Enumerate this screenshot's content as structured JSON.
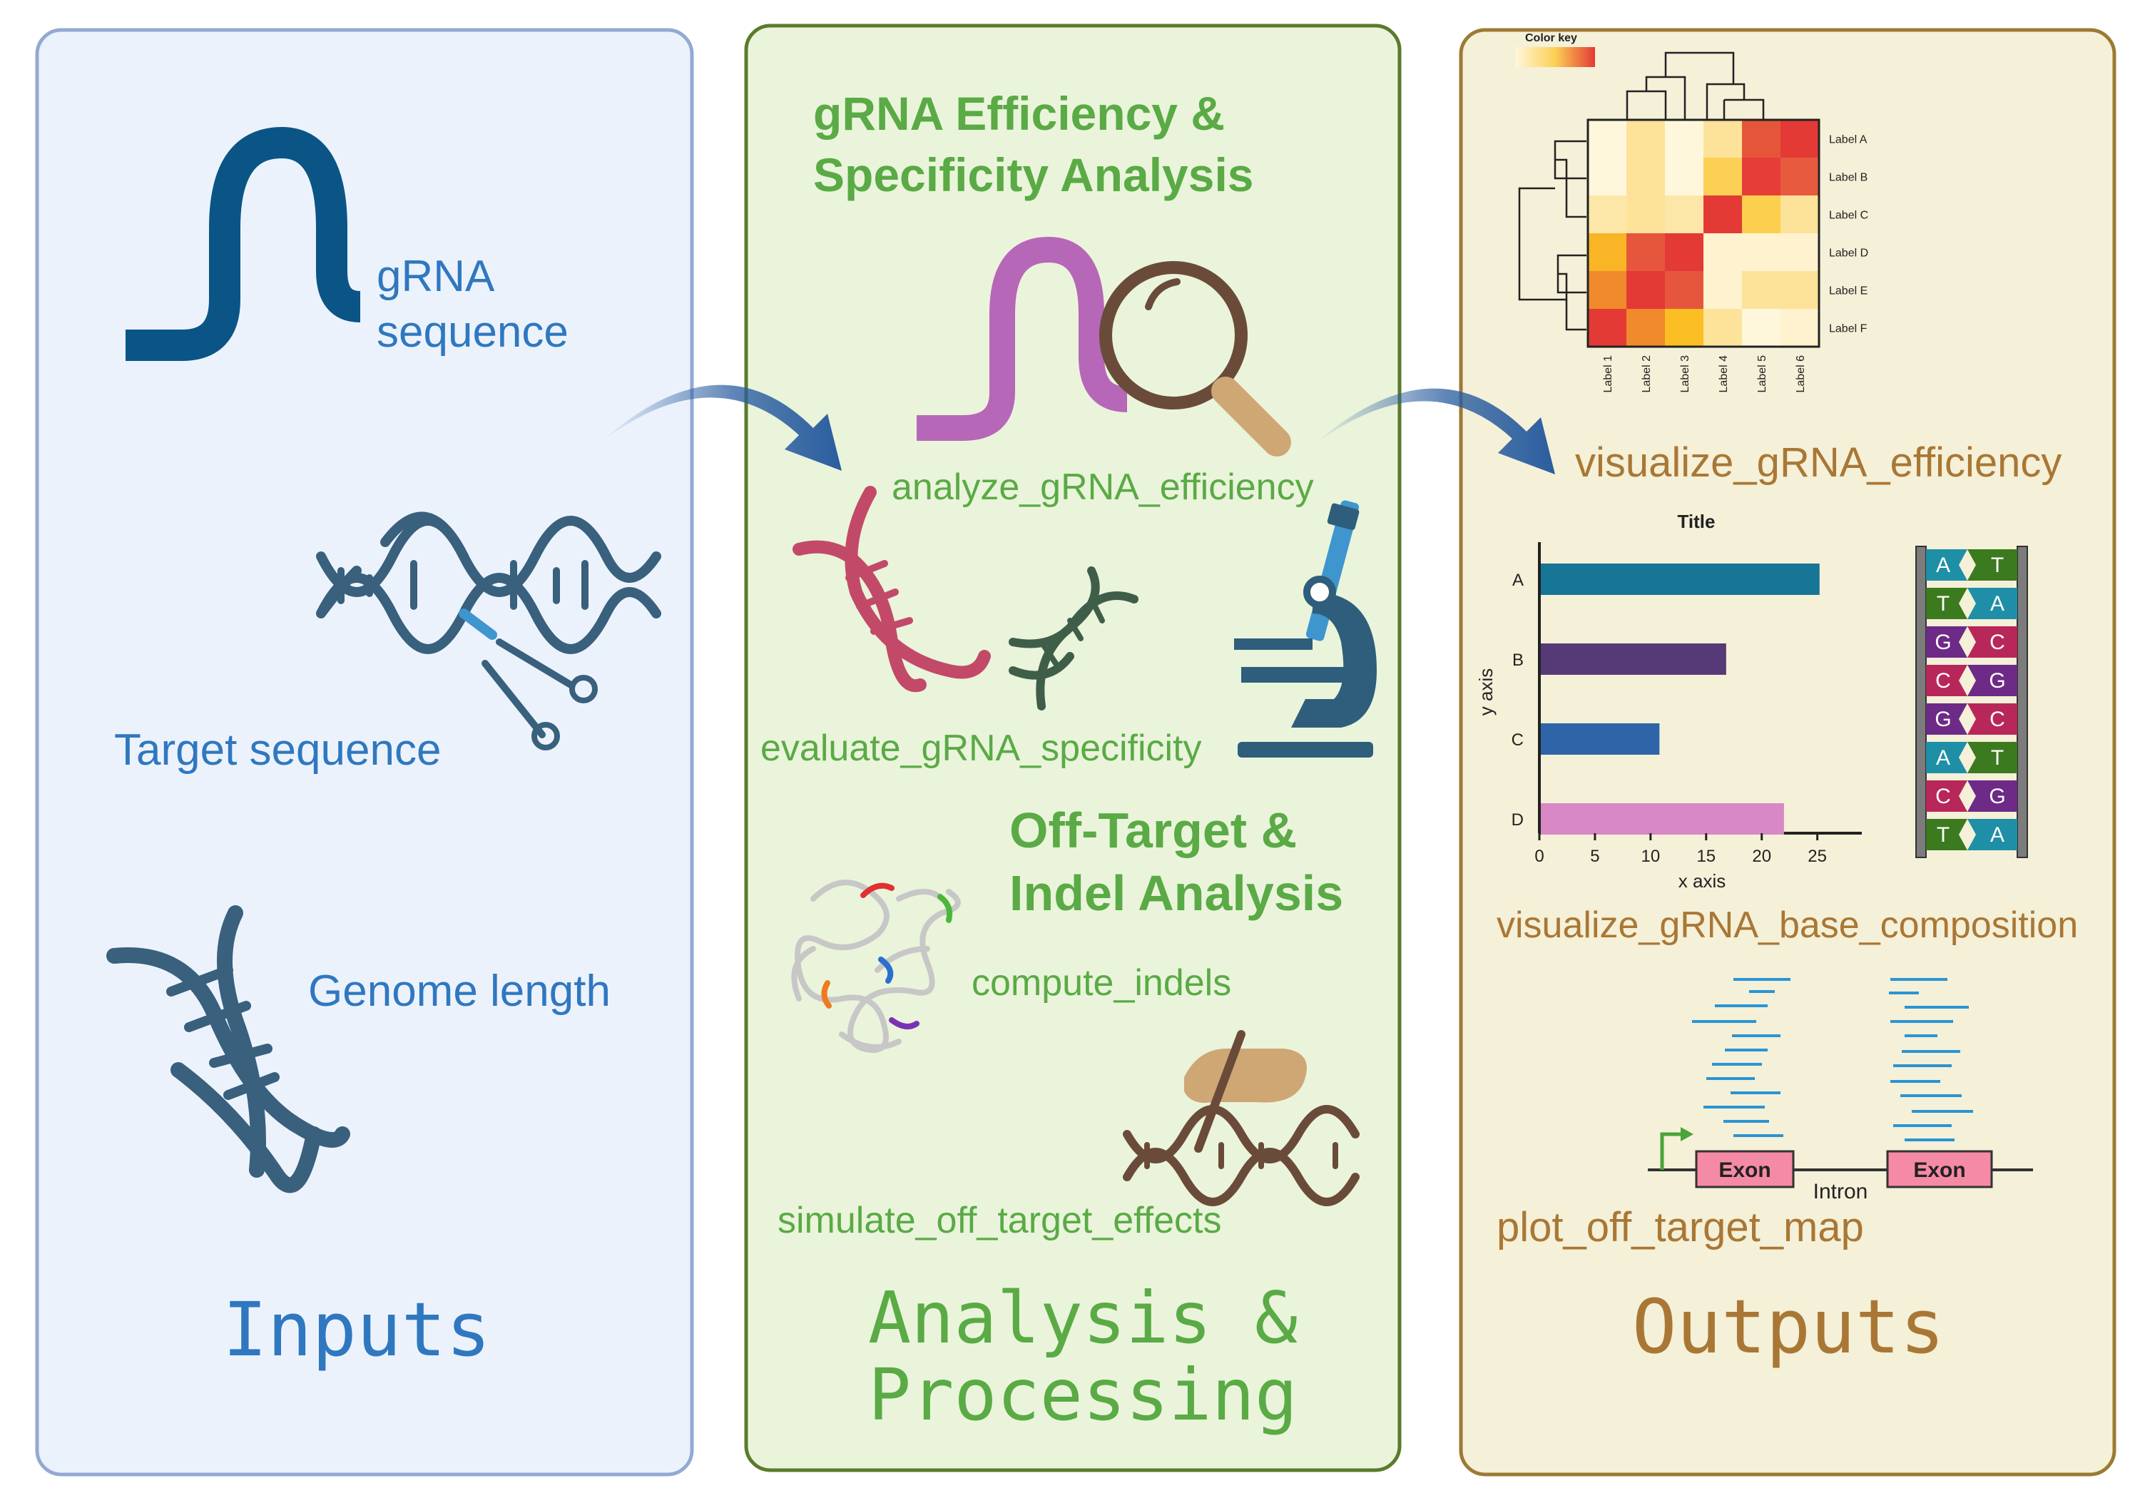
{
  "colors": {
    "inputs_panel_bg": "#ecf2fc",
    "inputs_panel_border": "#93a9d3",
    "analysis_panel_bg": "#eaf4db",
    "analysis_panel_border": "#5b7a2d",
    "outputs_panel_bg": "#f5f0d8",
    "outputs_panel_border": "#9c7a34",
    "inputs_text": "#2f78c0",
    "analysis_text": "#5aaa45",
    "outputs_text": "#a97735",
    "dna_dark": "#39607c",
    "grna_navy": "#0a5586",
    "grna_purple": "#b667b7",
    "magnifier": "#6a4b39",
    "dna_red": "#c24a68",
    "dna_green": "#3f5e4a",
    "microscope_blue": "#3f96cf",
    "microscope_dark": "#2f5e7c",
    "arrow_blue": "#2a5d9f"
  },
  "inputs": {
    "grna_label_1": "gRNA",
    "grna_label_2": "sequence",
    "target_label": "Target sequence",
    "genome_label": "Genome length",
    "title": "Inputs"
  },
  "analysis": {
    "heading1_line1": "gRNA Efficiency &",
    "heading1_line2": "Specificity Analysis",
    "fn_efficiency": "analyze_gRNA_efficiency",
    "fn_specificity": "evaluate_gRNA_specificity",
    "heading2_line1": "Off-Target &",
    "heading2_line2": "Indel Analysis",
    "fn_indels": "compute_indels",
    "fn_offtarget": "simulate_off_target_effects",
    "title_line1": "Analysis &",
    "title_line2": "Processing"
  },
  "outputs": {
    "fn_vis_efficiency": "visualize_gRNA_efficiency",
    "fn_vis_base": "visualize_gRNA_base_composition",
    "fn_plot_map": "plot_off_target_map",
    "title": "Outputs",
    "heatmap": {
      "color_key_label": "Color key",
      "row_labels": [
        "Label A",
        "Label B",
        "Label C",
        "Label D",
        "Label E",
        "Label F"
      ],
      "col_labels": [
        "Label 1",
        "Label 2",
        "Label 3",
        "Label 4",
        "Label 5",
        "Label 6"
      ],
      "cell_colors": [
        [
          "#fff7dc",
          "#fde29a",
          "#fff7dc",
          "#fde29a",
          "#e5553a",
          "#e33a35"
        ],
        [
          "#fff7dc",
          "#fde29a",
          "#fff7dc",
          "#fcd054",
          "#e63d38",
          "#e75a3e"
        ],
        [
          "#fde7a8",
          "#fde29a",
          "#fde7a8",
          "#e33a35",
          "#fccf4f",
          "#fde29a"
        ],
        [
          "#f9b525",
          "#e6563d",
          "#e33a35",
          "#fff2cf",
          "#fff2cf",
          "#fff2cf"
        ],
        [
          "#f08a2c",
          "#e33a35",
          "#e6563d",
          "#fff2cf",
          "#fde29a",
          "#fde29a"
        ],
        [
          "#e33a35",
          "#f08a2c",
          "#fbbf23",
          "#fde29a",
          "#fff7dc",
          "#fff2cf"
        ]
      ]
    },
    "mini_chart": {
      "title": "Title",
      "xlabel": "x axis",
      "ylabel": "y axis"
    },
    "base_pairs": [
      {
        "left": "A",
        "right": "T",
        "left_color": "#1e8fa6",
        "right_color": "#3b7a1e"
      },
      {
        "left": "T",
        "right": "A",
        "left_color": "#3b7a1e",
        "right_color": "#1e8fa6"
      },
      {
        "left": "G",
        "right": "C",
        "left_color": "#6d2a86",
        "right_color": "#b8275a"
      },
      {
        "left": "C",
        "right": "G",
        "left_color": "#b8275a",
        "right_color": "#6d2a86"
      },
      {
        "left": "G",
        "right": "C",
        "left_color": "#6d2a86",
        "right_color": "#b8275a"
      },
      {
        "left": "A",
        "right": "T",
        "left_color": "#1e8fa6",
        "right_color": "#3b7a1e"
      },
      {
        "left": "C",
        "right": "G",
        "left_color": "#b8275a",
        "right_color": "#6d2a86"
      },
      {
        "left": "T",
        "right": "A",
        "left_color": "#3b7a1e",
        "right_color": "#1e8fa6"
      }
    ],
    "gene_map": {
      "exon1_label": "Exon",
      "exon2_label": "Exon",
      "intron_label": "Intron"
    }
  },
  "chart_data": {
    "type": "bar",
    "orientation": "horizontal",
    "title": "Title",
    "xlabel": "x axis",
    "ylabel": "y axis",
    "categories": [
      "A",
      "B",
      "C",
      "D"
    ],
    "values": [
      25.2,
      16.8,
      10.8,
      22.0
    ],
    "bar_colors": [
      "#177595",
      "#563a78",
      "#2e64a8",
      "#d888c5"
    ],
    "xticks": [
      0,
      5,
      10,
      15,
      20,
      25
    ],
    "xlim": [
      0,
      29
    ]
  }
}
